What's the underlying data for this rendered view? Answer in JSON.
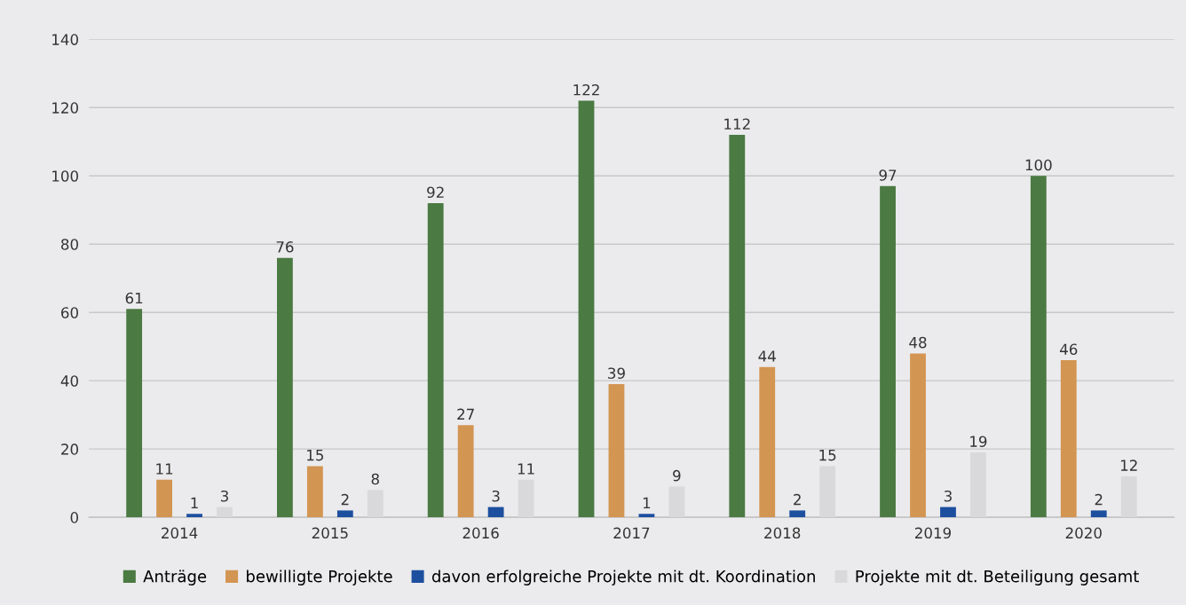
{
  "chart_data": {
    "type": "bar",
    "categories": [
      "2014",
      "2015",
      "2016",
      "2017",
      "2018",
      "2019",
      "2020"
    ],
    "series": [
      {
        "name": "Anträge",
        "color": "#4b7a43",
        "values": [
          61,
          76,
          92,
          122,
          112,
          97,
          100
        ]
      },
      {
        "name": "bewilligte Projekte",
        "color": "#d39552",
        "values": [
          11,
          15,
          27,
          39,
          44,
          48,
          46
        ]
      },
      {
        "name": "davon erfolgreiche Projekte mit dt. Koordination",
        "color": "#1d4f9f",
        "values": [
          1,
          2,
          3,
          1,
          2,
          3,
          2
        ]
      },
      {
        "name": "Projekte mit dt. Beteiligung gesamt",
        "color": "#d9d9db",
        "values": [
          3,
          8,
          11,
          9,
          15,
          19,
          12
        ]
      }
    ],
    "ylim": [
      0,
      140
    ],
    "yticks": [
      0,
      20,
      40,
      60,
      80,
      100,
      120,
      140
    ],
    "grid": "y",
    "legend": "bottom",
    "data_labels": true
  }
}
